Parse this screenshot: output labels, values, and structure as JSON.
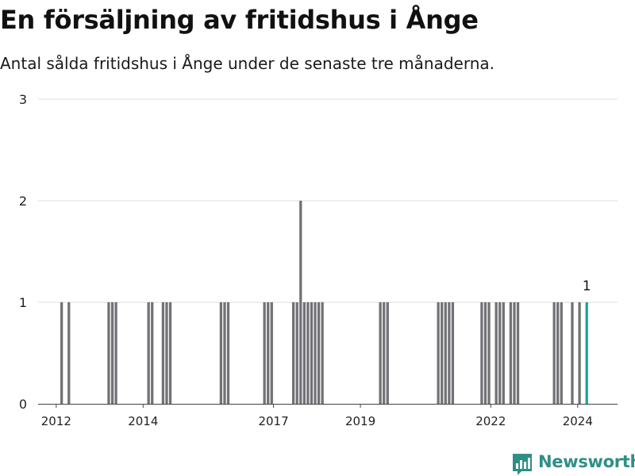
{
  "chart_data": {
    "type": "bar",
    "title": "En försäljning av fritidshus i Ånge",
    "subtitle": "Antal sålda fritidshus i Ånge under de senaste tre månaderna.",
    "xlabel": "",
    "ylabel": "",
    "ylim": [
      0,
      3
    ],
    "yticks": [
      0,
      1,
      2,
      3
    ],
    "xlim": [
      "2011-08",
      "2024-12"
    ],
    "xticks": [
      "2012",
      "2014",
      "2017",
      "2019",
      "2022",
      "2024"
    ],
    "grid": true,
    "highlight_color": "#1aa39a",
    "bar_color": "#717176",
    "highlight_label": "1",
    "series": [
      {
        "dates": [
          "2012-02",
          "2012-03",
          "2012-04",
          "2013-03",
          "2013-04",
          "2013-05",
          "2014-02",
          "2014-03",
          "2014-06",
          "2014-07",
          "2014-08",
          "2015-10",
          "2015-11",
          "2015-12",
          "2016-10",
          "2016-11",
          "2016-12",
          "2017-06",
          "2017-07",
          "2017-08",
          "2017-09",
          "2017-10",
          "2017-11",
          "2017-12",
          "2018-01",
          "2018-02",
          "2019-06",
          "2019-07",
          "2019-08",
          "2020-10",
          "2020-11",
          "2020-12",
          "2021-01",
          "2021-02",
          "2021-10",
          "2021-11",
          "2021-12",
          "2022-02",
          "2022-03",
          "2022-04",
          "2022-06",
          "2022-07",
          "2022-08",
          "2023-06",
          "2023-07",
          "2023-08",
          "2023-11",
          "2023-12",
          "2024-01",
          "2024-03"
        ],
        "values": [
          1,
          0,
          1,
          1,
          1,
          1,
          1,
          1,
          1,
          1,
          1,
          1,
          1,
          1,
          1,
          1,
          1,
          1,
          1,
          2,
          1,
          1,
          1,
          1,
          1,
          1,
          1,
          1,
          1,
          1,
          1,
          1,
          1,
          1,
          1,
          1,
          1,
          1,
          1,
          1,
          1,
          1,
          1,
          1,
          1,
          1,
          1,
          0,
          1,
          1
        ]
      }
    ]
  },
  "brand": {
    "name": "Newsworthy",
    "icon": "bar-chart-badge-icon",
    "color": "#2e8f86"
  }
}
